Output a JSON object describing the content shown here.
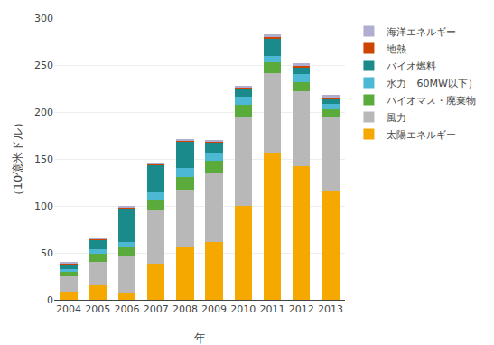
{
  "chart_data": {
    "type": "bar",
    "stacked": true,
    "x_label": "年",
    "y_label": "（10億米ドル）",
    "categories": [
      "2004",
      "2005",
      "2006",
      "2007",
      "2008",
      "2009",
      "2010",
      "2011",
      "2012",
      "2013"
    ],
    "series": [
      {
        "name": "太陽エネルギー",
        "color": "#f5a800",
        "values": [
          9,
          15,
          8,
          38,
          57,
          62,
          100,
          157,
          142,
          115
        ]
      },
      {
        "name": "風力",
        "color": "#b8b8b8",
        "values": [
          16,
          25,
          39,
          57,
          60,
          73,
          95,
          84,
          80,
          80
        ]
      },
      {
        "name": "バイオマス・廃棄物",
        "color": "#5aaa3c",
        "values": [
          5,
          9,
          9,
          11,
          14,
          13,
          13,
          12,
          10,
          8
        ]
      },
      {
        "name": "水力　60MW以下）",
        "color": "#4db8d4",
        "values": [
          3,
          5,
          6,
          8,
          9,
          9,
          8,
          7,
          8,
          6
        ]
      },
      {
        "name": "バイオ燃料",
        "color": "#1a8a8a",
        "values": [
          5,
          10,
          36,
          30,
          29,
          11,
          9,
          18,
          7,
          5
        ]
      },
      {
        "name": "地熱",
        "color": "#cc4400",
        "values": [
          1,
          1,
          1,
          1,
          1,
          1,
          1,
          2,
          2,
          1
        ]
      },
      {
        "name": "海洋エネルギー",
        "color": "#b0aed0",
        "values": [
          1,
          1,
          1,
          1,
          1,
          1,
          2,
          3,
          3,
          3
        ]
      }
    ],
    "ylim": [
      0,
      300
    ],
    "yticks": [
      0,
      50,
      100,
      150,
      200,
      250,
      300
    ],
    "grid": true,
    "legend": "right"
  }
}
